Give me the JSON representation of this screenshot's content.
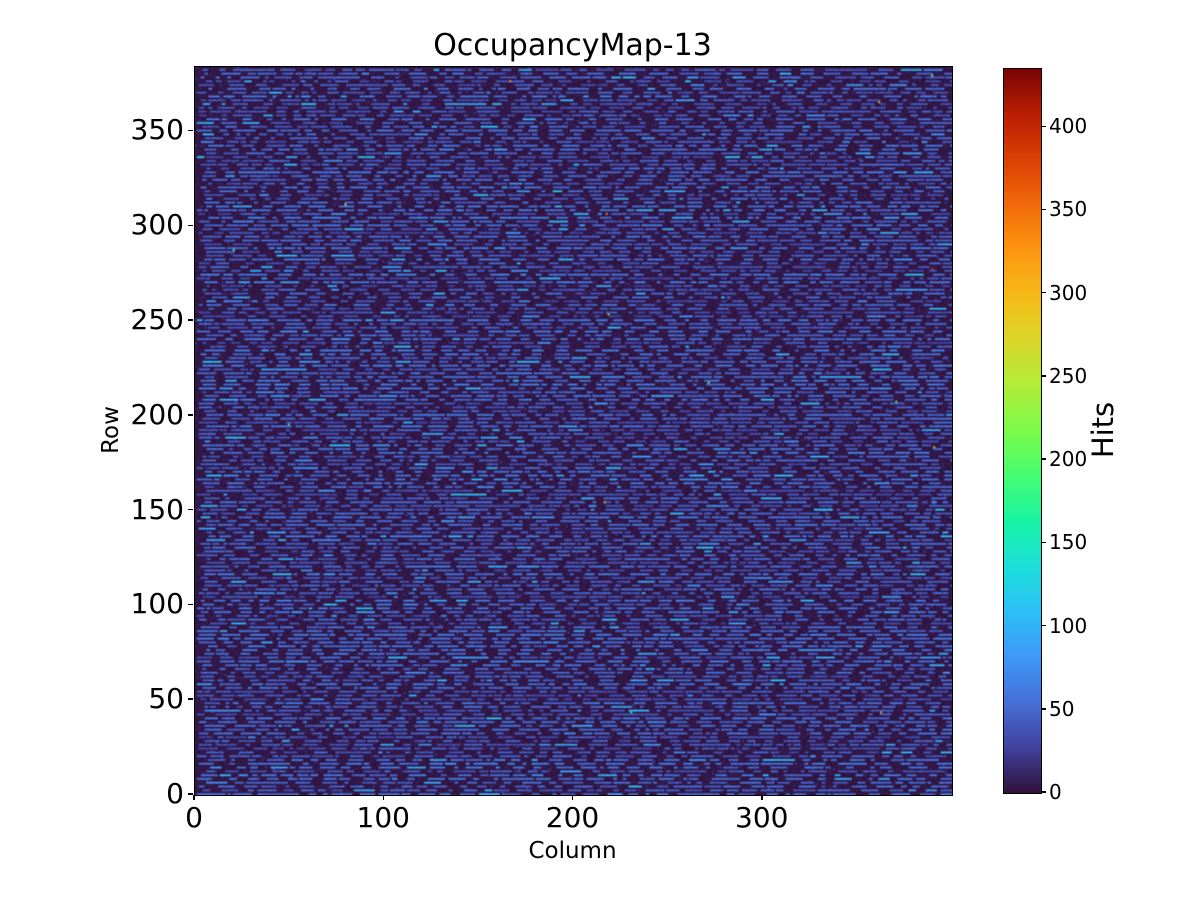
{
  "figure": {
    "background": "#ffffff",
    "text_color": "#000000"
  },
  "chart_data": {
    "type": "heatmap",
    "title": "OccupancyMap-13",
    "xlabel": "Column",
    "ylabel": "Row",
    "colorbar_label": "Hits",
    "colormap": "turbo",
    "rows": 384,
    "cols": 400,
    "xlim": [
      0,
      400
    ],
    "ylim": [
      0,
      384
    ],
    "vmin": 0,
    "vmax": 435,
    "x_ticks": [
      0,
      100,
      200,
      300
    ],
    "y_ticks": [
      0,
      50,
      100,
      150,
      200,
      250,
      300,
      350
    ],
    "colorbar_ticks": [
      0,
      50,
      100,
      150,
      200,
      250,
      300,
      350,
      400
    ],
    "grid": false,
    "legend": false,
    "pattern": {
      "description": "Low-occupancy pixel map: near-zero dark background with dashed horizontal stripes of ~30-70 hits on every other row, plus sparse isolated hot pixels up to ~435 hits",
      "seed": 20240613,
      "stripe_row_period": 2,
      "background_value_range": [
        0,
        7
      ],
      "dash_value_range": [
        28,
        68
      ],
      "bright_dash_value_range": [
        70,
        110
      ],
      "bright_dash_probability": 0.07,
      "dash_length_range": [
        2,
        10
      ],
      "gap_length_range": [
        1,
        8
      ],
      "row_density_range": [
        0.35,
        0.75
      ],
      "speck_probability": 0.01,
      "hot_pixel_count": 14,
      "hot_pixel_value_range": [
        140,
        435
      ],
      "hot_pixels": [
        {
          "col": 79,
          "row": 311,
          "value": 260
        },
        {
          "col": 389,
          "row": 379,
          "value": 215
        }
      ]
    }
  }
}
